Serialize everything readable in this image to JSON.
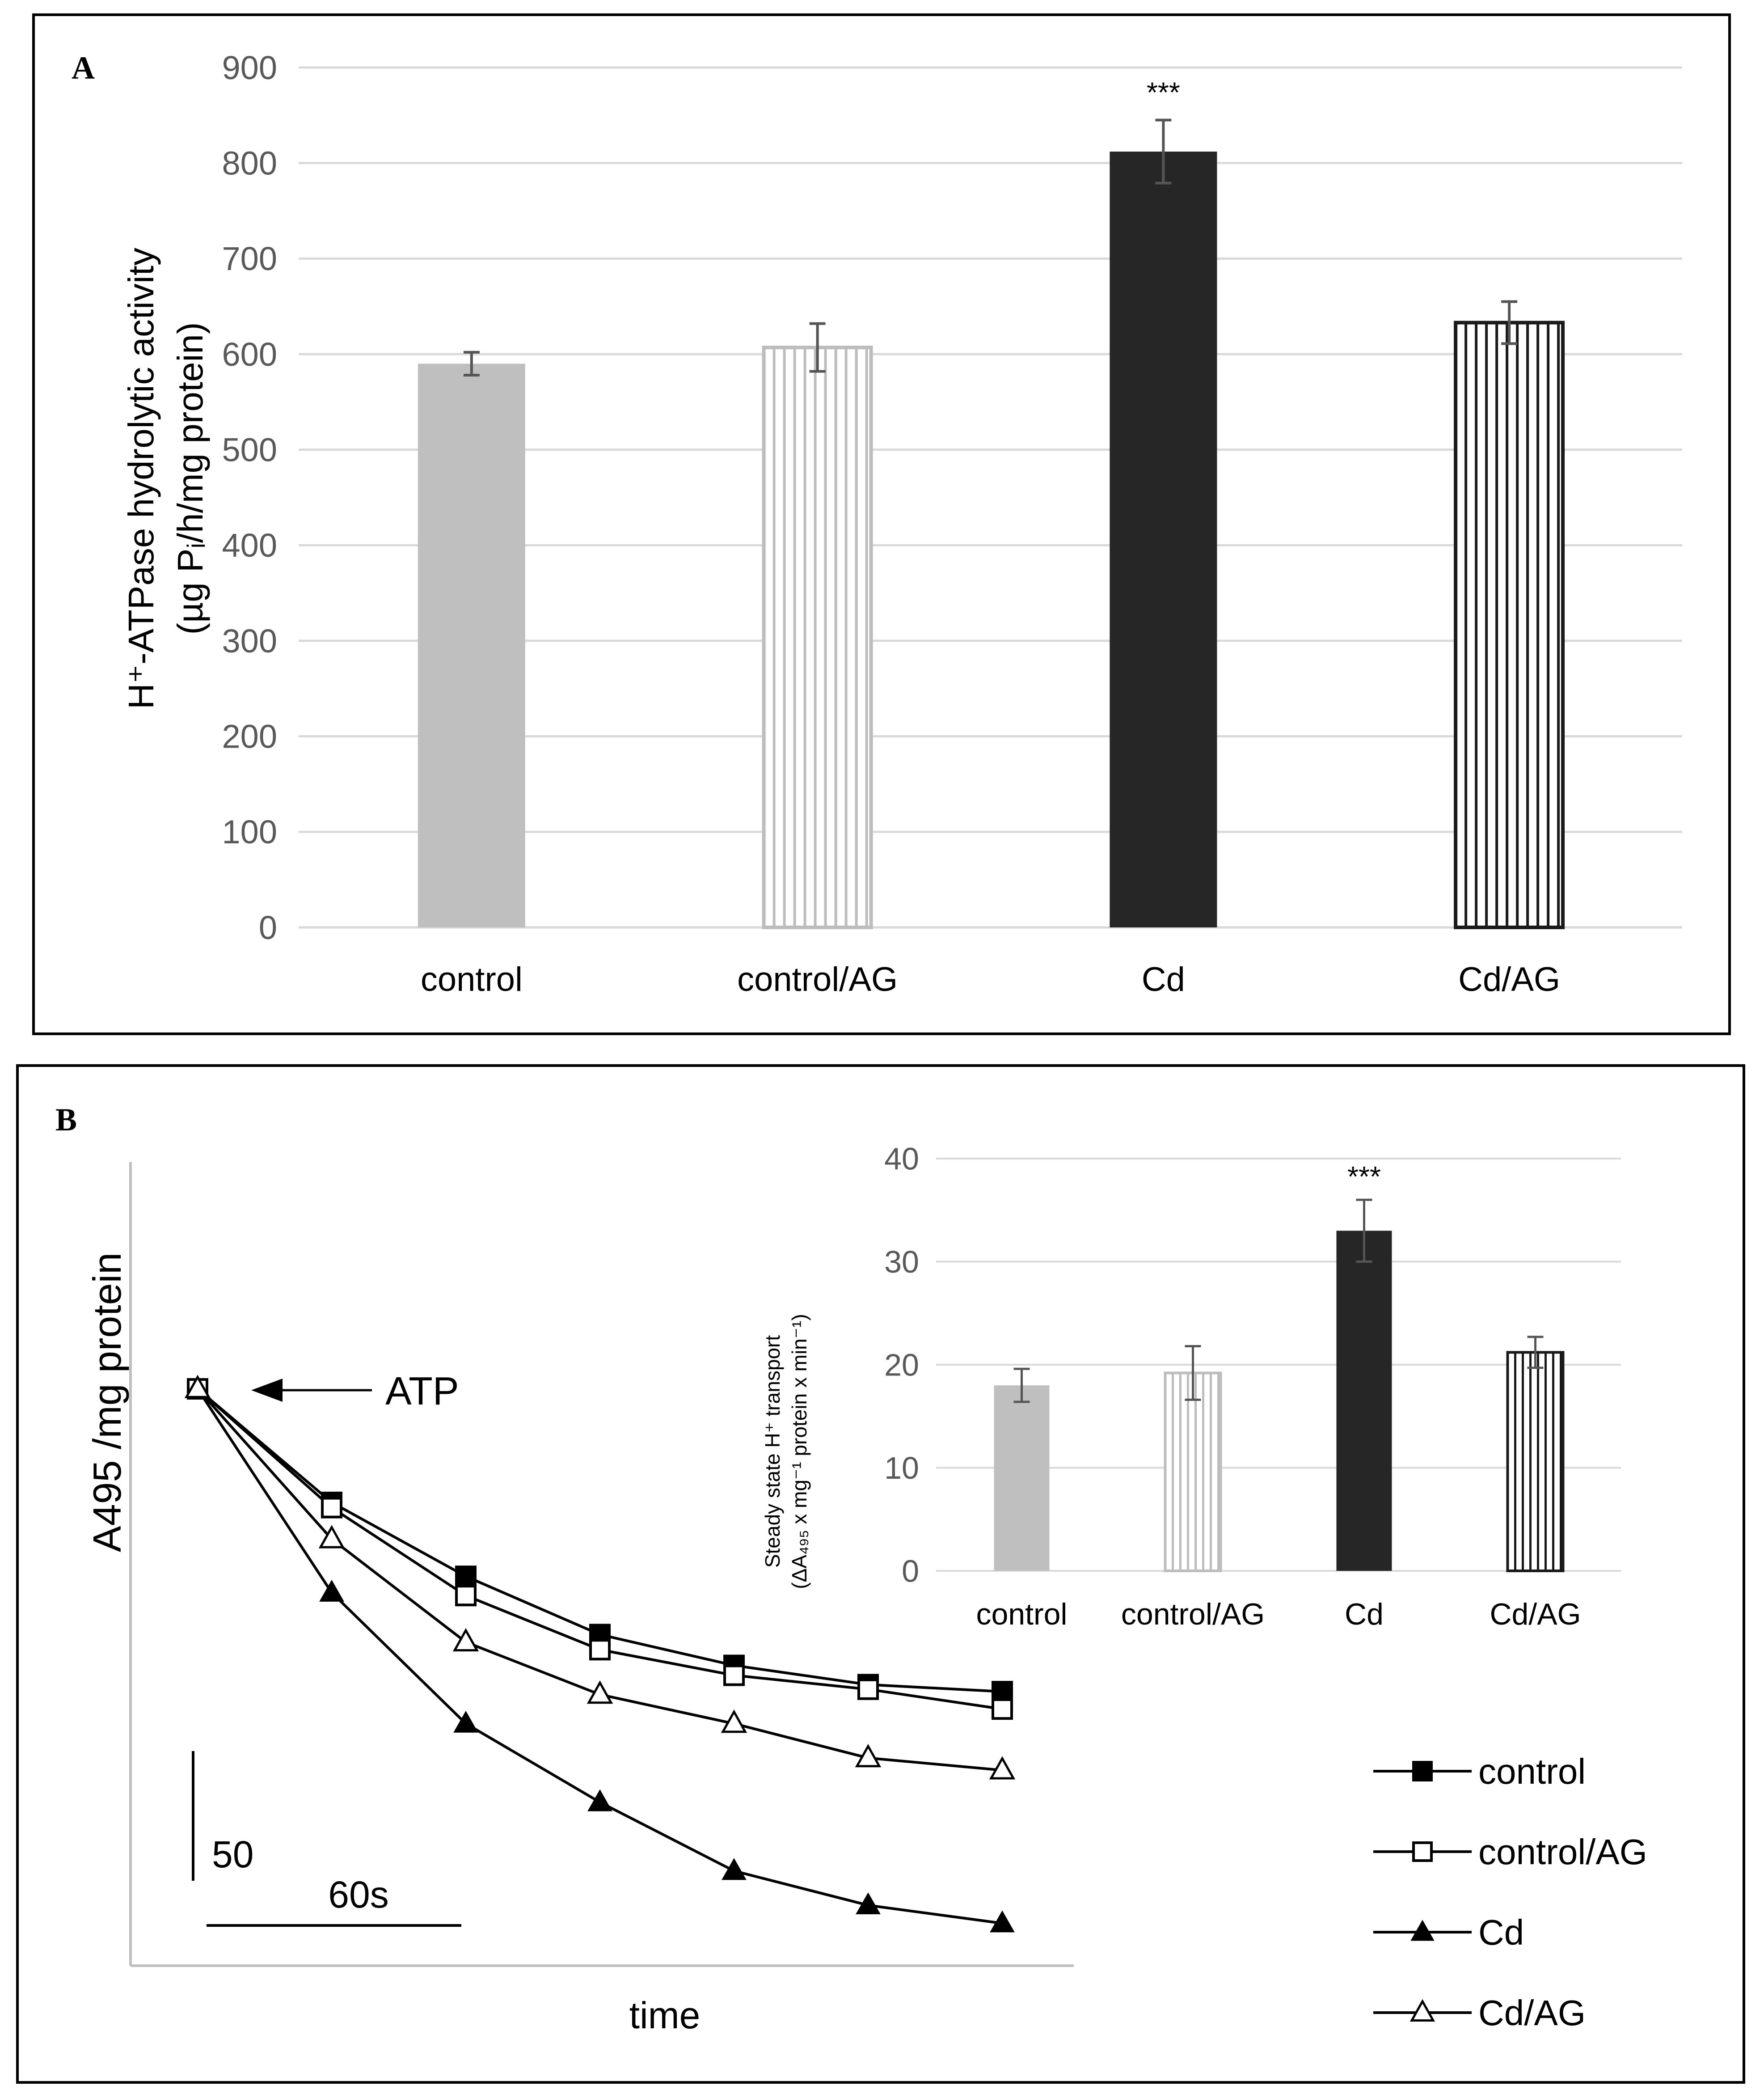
{
  "chart_data": [
    {
      "panel": "A",
      "type": "bar",
      "title": "",
      "xlabel": "",
      "ylabel_line1": "H⁺-ATPase hydrolytic activity",
      "ylabel_line2": "(µg Pᵢ/h/mg protein)",
      "ylim": [
        0,
        900
      ],
      "ytick_step": 100,
      "grid": true,
      "categories": [
        "control",
        "control/AG",
        "Cd",
        "Cd/AG"
      ],
      "values": [
        590,
        607,
        812,
        633
      ],
      "errors": [
        12,
        25,
        33,
        22
      ],
      "significance": [
        "",
        "",
        "***",
        ""
      ],
      "fills": [
        "solid-light-gray",
        "striped-light-gray",
        "solid-black",
        "striped-black"
      ]
    },
    {
      "panel": "B-inset",
      "type": "bar",
      "title": "",
      "xlabel": "",
      "ylabel_line1": "Steady state H⁺ transport",
      "ylabel_line2": "(ΔA₄₉₅ x mg⁻¹ protein x min⁻¹)",
      "ylim": [
        0,
        40
      ],
      "ytick_step": 10,
      "grid": true,
      "categories": [
        "control",
        "control/AG",
        "Cd",
        "Cd/AG"
      ],
      "values": [
        18,
        19.2,
        33,
        21.2
      ],
      "errors": [
        1.6,
        2.6,
        3,
        1.5
      ],
      "significance": [
        "",
        "",
        "***",
        ""
      ],
      "fills": [
        "solid-light-gray",
        "striped-light-gray",
        "solid-black",
        "striped-black"
      ]
    },
    {
      "panel": "B",
      "type": "line",
      "xlabel": "time",
      "ylabel": "A495 /mg protein",
      "x": [
        0,
        1,
        2,
        3,
        4,
        5,
        6
      ],
      "ylim": [
        0,
        100
      ],
      "series": [
        {
          "name": "control",
          "marker": "filled-square",
          "values": [
            100,
            80.5,
            67.8,
            57.8,
            52.5,
            49.2,
            48.0
          ]
        },
        {
          "name": "control/AG",
          "marker": "open-square",
          "values": [
            100,
            79.6,
            64.5,
            55.2,
            50.8,
            48.4,
            45.0
          ]
        },
        {
          "name": "Cd",
          "marker": "filled-triangle",
          "values": [
            100,
            65.0,
            42.5,
            29.0,
            17.2,
            11.3,
            8.2
          ]
        },
        {
          "name": "Cd/AG",
          "marker": "open-triangle",
          "values": [
            100,
            74.2,
            56.5,
            47.5,
            42.5,
            36.6,
            34.5
          ]
        }
      ],
      "annotation_atp": "ATP",
      "scalebar_y_label": "50",
      "scalebar_x_label": "60s"
    }
  ],
  "panel_labels": {
    "a": "A",
    "b": "B"
  }
}
